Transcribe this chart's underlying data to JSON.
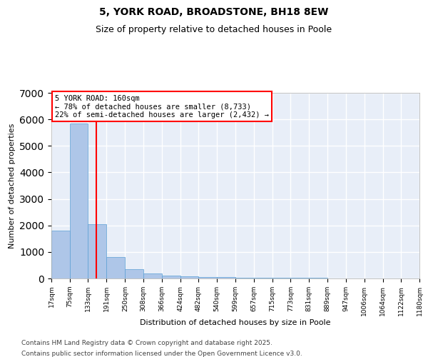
{
  "title1": "5, YORK ROAD, BROADSTONE, BH18 8EW",
  "title2": "Size of property relative to detached houses in Poole",
  "xlabel": "Distribution of detached houses by size in Poole",
  "ylabel": "Number of detached properties",
  "bar_color": "#aec6e8",
  "bar_edge_color": "#5a9fd4",
  "background_color": "#e8eef8",
  "grid_color": "#ffffff",
  "bins": [
    17,
    75,
    133,
    191,
    250,
    308,
    366,
    424,
    482,
    540,
    599,
    657,
    715,
    773,
    831,
    889,
    947,
    1006,
    1064,
    1122,
    1180
  ],
  "bin_labels": [
    "17sqm",
    "75sqm",
    "133sqm",
    "191sqm",
    "250sqm",
    "308sqm",
    "366sqm",
    "424sqm",
    "482sqm",
    "540sqm",
    "599sqm",
    "657sqm",
    "715sqm",
    "773sqm",
    "831sqm",
    "889sqm",
    "947sqm",
    "1006sqm",
    "1064sqm",
    "1122sqm",
    "1180sqm"
  ],
  "values": [
    1800,
    5850,
    2050,
    800,
    350,
    200,
    120,
    80,
    60,
    50,
    35,
    25,
    20,
    18,
    15,
    10,
    8,
    6,
    5,
    5
  ],
  "ylim": [
    0,
    7000
  ],
  "yticks": [
    0,
    1000,
    2000,
    3000,
    4000,
    5000,
    6000,
    7000
  ],
  "red_line_x": 160,
  "annotation_text": "5 YORK ROAD: 160sqm\n← 78% of detached houses are smaller (8,733)\n22% of semi-detached houses are larger (2,432) →",
  "footer1": "Contains HM Land Registry data © Crown copyright and database right 2025.",
  "footer2": "Contains public sector information licensed under the Open Government Licence v3.0."
}
